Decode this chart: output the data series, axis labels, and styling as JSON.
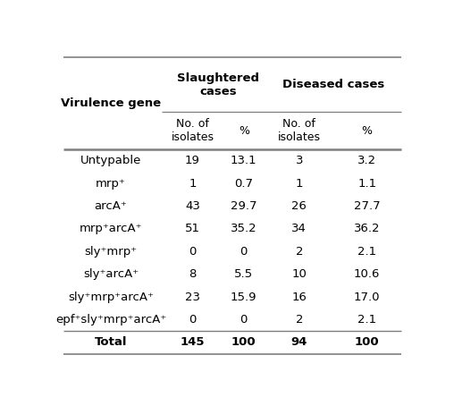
{
  "rows": [
    [
      "Untypable",
      "19",
      "13.1",
      "3",
      "3.2"
    ],
    [
      "mrp⁺",
      "1",
      "0.7",
      "1",
      "1.1"
    ],
    [
      "arcA⁺",
      "43",
      "29.7",
      "26",
      "27.7"
    ],
    [
      "mrp⁺arcA⁺",
      "51",
      "35.2",
      "34",
      "36.2"
    ],
    [
      "sly⁺mrp⁺",
      "0",
      "0",
      "2",
      "2.1"
    ],
    [
      "sly⁺arcA⁺",
      "8",
      "5.5",
      "10",
      "10.6"
    ],
    [
      "sly⁺mrp⁺arcA⁺",
      "23",
      "15.9",
      "16",
      "17.0"
    ],
    [
      "epf⁺sly⁺mrp⁺arcA⁺",
      "0",
      "0",
      "2",
      "2.1"
    ]
  ],
  "total_row": [
    "Total",
    "145",
    "100",
    "94",
    "100"
  ],
  "background_color": "#ffffff",
  "line_color": "#7f7f7f",
  "body_fontsize": 9.5,
  "header_fontsize": 9.5
}
